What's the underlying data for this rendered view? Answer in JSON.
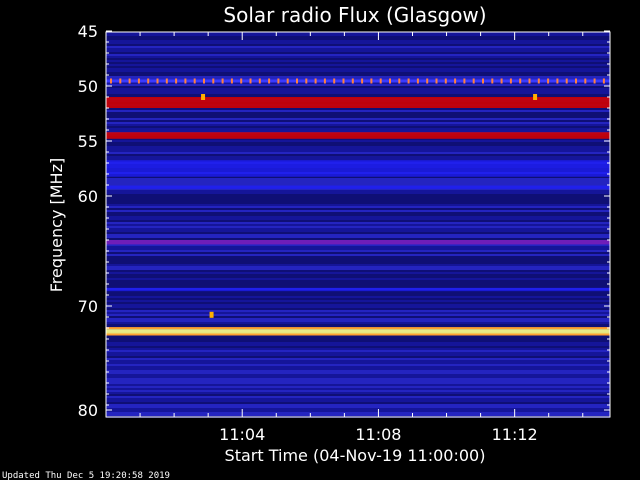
{
  "chart_data": {
    "type": "heatmap",
    "title": "Solar radio Flux (Glasgow)",
    "ylabel": "Frequency [MHz]",
    "xlabel": "Start Time (04-Nov-19 11:00:00)",
    "footer": "Updated Thu Dec  5 19:20:58 2019",
    "y_axis": {
      "reversed": true,
      "ylim": [
        44,
        80
      ],
      "ticks": [
        45,
        50,
        55,
        60,
        70,
        80
      ]
    },
    "x_axis": {
      "xlim_minutes": [
        0,
        14.8
      ],
      "ticks": [
        "11:04",
        "11:08",
        "11:12"
      ],
      "tick_minutes": [
        4,
        8,
        12
      ]
    },
    "colors": {
      "background": "#000000",
      "low": "#0a0a60",
      "mid": "#2020ff",
      "high": "#d00000",
      "peak": "#ffff80"
    },
    "bands": [
      {
        "mhz": 51.5,
        "width": 1.0,
        "level": "high"
      },
      {
        "mhz": 54.5,
        "width": 0.6,
        "level": "high"
      },
      {
        "mhz": 49.5,
        "width": 0.4,
        "level": "dotted"
      },
      {
        "mhz": 57.5,
        "width": 1.5,
        "level": "mid"
      },
      {
        "mhz": 59.2,
        "width": 0.3,
        "level": "mid"
      },
      {
        "mhz": 64.2,
        "width": 0.4,
        "level": "purple"
      },
      {
        "mhz": 68.5,
        "width": 0.3,
        "level": "mid"
      },
      {
        "mhz": 72.3,
        "width": 0.4,
        "level": "peak"
      }
    ],
    "spots": [
      {
        "minute": 2.85,
        "mhz": 51.0
      },
      {
        "minute": 12.6,
        "mhz": 51.0
      },
      {
        "minute": 3.1,
        "mhz": 70.8
      }
    ]
  }
}
